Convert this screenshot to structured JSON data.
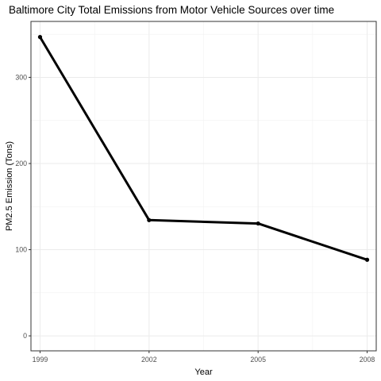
{
  "chart_data": {
    "type": "line",
    "title": "Baltimore City Total Emissions from Motor Vehicle Sources over time",
    "xlabel": "Year",
    "ylabel": "PM2.5 Emission (Tons)",
    "x": [
      1999,
      2002,
      2005,
      2008
    ],
    "xticks": [
      1999,
      2002,
      2005,
      2008
    ],
    "xtick_labels": [
      "1999",
      "2002",
      "2005",
      "2008"
    ],
    "yticks": [
      0,
      100,
      200,
      300
    ],
    "ytick_labels": [
      "0",
      "100",
      "200",
      "300"
    ],
    "xlim": [
      1998.75,
      2008.25
    ],
    "ylim": [
      -17.4,
      364.9
    ],
    "series": [
      {
        "values": [
          346.8,
          134.3,
          130.4,
          88.3
        ]
      }
    ],
    "grid": true,
    "legend": "none",
    "colors": {
      "line": "#000000",
      "grid": "#ebebeb",
      "panel_border": "#333333",
      "background": "#ffffff"
    }
  }
}
